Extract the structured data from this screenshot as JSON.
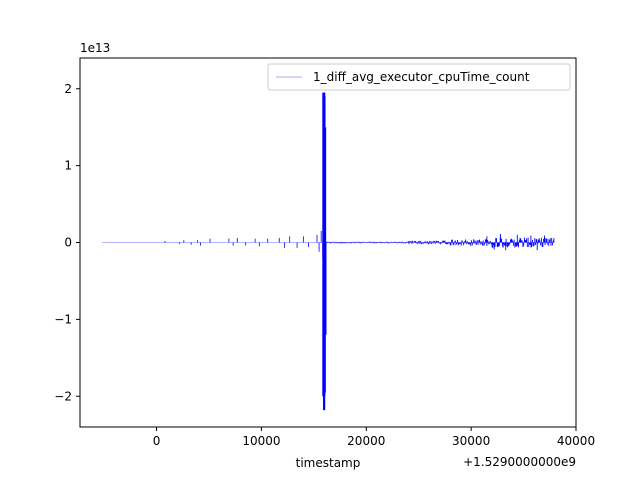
{
  "chart_data": {
    "type": "line",
    "title": "",
    "xlabel": "timestamp",
    "ylabel": "",
    "x_offset_label": "+1.5290000000e9",
    "y_scale_label": "1e13",
    "xlim": [
      -7300,
      40000
    ],
    "ylim": [
      -2.4,
      2.4
    ],
    "x_ticks": [
      0,
      10000,
      20000,
      30000,
      40000
    ],
    "x_tick_labels": [
      "0",
      "10000",
      "20000",
      "30000",
      "40000"
    ],
    "y_ticks": [
      -2,
      -1,
      0,
      1,
      2
    ],
    "y_tick_labels": [
      "−2",
      "−1",
      "0",
      "1",
      "2"
    ],
    "grid": false,
    "legend": {
      "placement": "top-right",
      "entries": [
        "1_diff_avg_executor_cpuTime_count"
      ]
    },
    "series": [
      {
        "name": "1_diff_avg_executor_cpuTime_count",
        "color": "#0000ff",
        "x_start": -5200,
        "x_end": 37900,
        "baseline": 0,
        "spikes": [
          {
            "x": 800,
            "y": 0.02
          },
          {
            "x": 2200,
            "y": -0.02
          },
          {
            "x": 2600,
            "y": 0.03
          },
          {
            "x": 3300,
            "y": -0.03
          },
          {
            "x": 3900,
            "y": 0.03
          },
          {
            "x": 4200,
            "y": -0.04
          },
          {
            "x": 5100,
            "y": 0.05
          },
          {
            "x": 6900,
            "y": 0.05
          },
          {
            "x": 7300,
            "y": -0.04
          },
          {
            "x": 7700,
            "y": 0.06
          },
          {
            "x": 8500,
            "y": -0.04
          },
          {
            "x": 9400,
            "y": 0.05
          },
          {
            "x": 9800,
            "y": -0.05
          },
          {
            "x": 10600,
            "y": 0.05
          },
          {
            "x": 11700,
            "y": 0.06
          },
          {
            "x": 12200,
            "y": -0.07
          },
          {
            "x": 12700,
            "y": 0.08
          },
          {
            "x": 13400,
            "y": -0.07
          },
          {
            "x": 14000,
            "y": 0.08
          },
          {
            "x": 14500,
            "y": -0.06
          },
          {
            "x": 15300,
            "y": 0.1
          },
          {
            "x": 15500,
            "y": -0.12
          },
          {
            "x": 15700,
            "y": 0.15
          },
          {
            "x": 15850,
            "y": -0.2
          },
          {
            "x": 15950,
            "y": 1.95
          },
          {
            "x": 15980,
            "y": -2.18
          },
          {
            "x": 16010,
            "y": 1.9
          },
          {
            "x": 16040,
            "y": -1.95
          },
          {
            "x": 16070,
            "y": 1.5
          },
          {
            "x": 16100,
            "y": -1.2
          }
        ],
        "dense_noise": [
          {
            "from": 16200,
            "to": 24000,
            "amplitude": 0.012
          },
          {
            "from": 24000,
            "to": 28000,
            "amplitude": 0.025
          },
          {
            "from": 28000,
            "to": 32000,
            "amplitude": 0.045
          },
          {
            "from": 32000,
            "to": 36000,
            "amplitude": 0.07
          },
          {
            "from": 36000,
            "to": 37900,
            "amplitude": 0.06
          }
        ],
        "extra_spikes": [
          {
            "x": 31500,
            "y": 0.08
          },
          {
            "x": 32200,
            "y": -0.09
          },
          {
            "x": 32800,
            "y": 0.11
          },
          {
            "x": 33300,
            "y": -0.1
          },
          {
            "x": 34400,
            "y": 0.1
          },
          {
            "x": 35700,
            "y": 0.09
          },
          {
            "x": 36300,
            "y": -0.1
          },
          {
            "x": 37000,
            "y": 0.09
          }
        ]
      }
    ]
  }
}
